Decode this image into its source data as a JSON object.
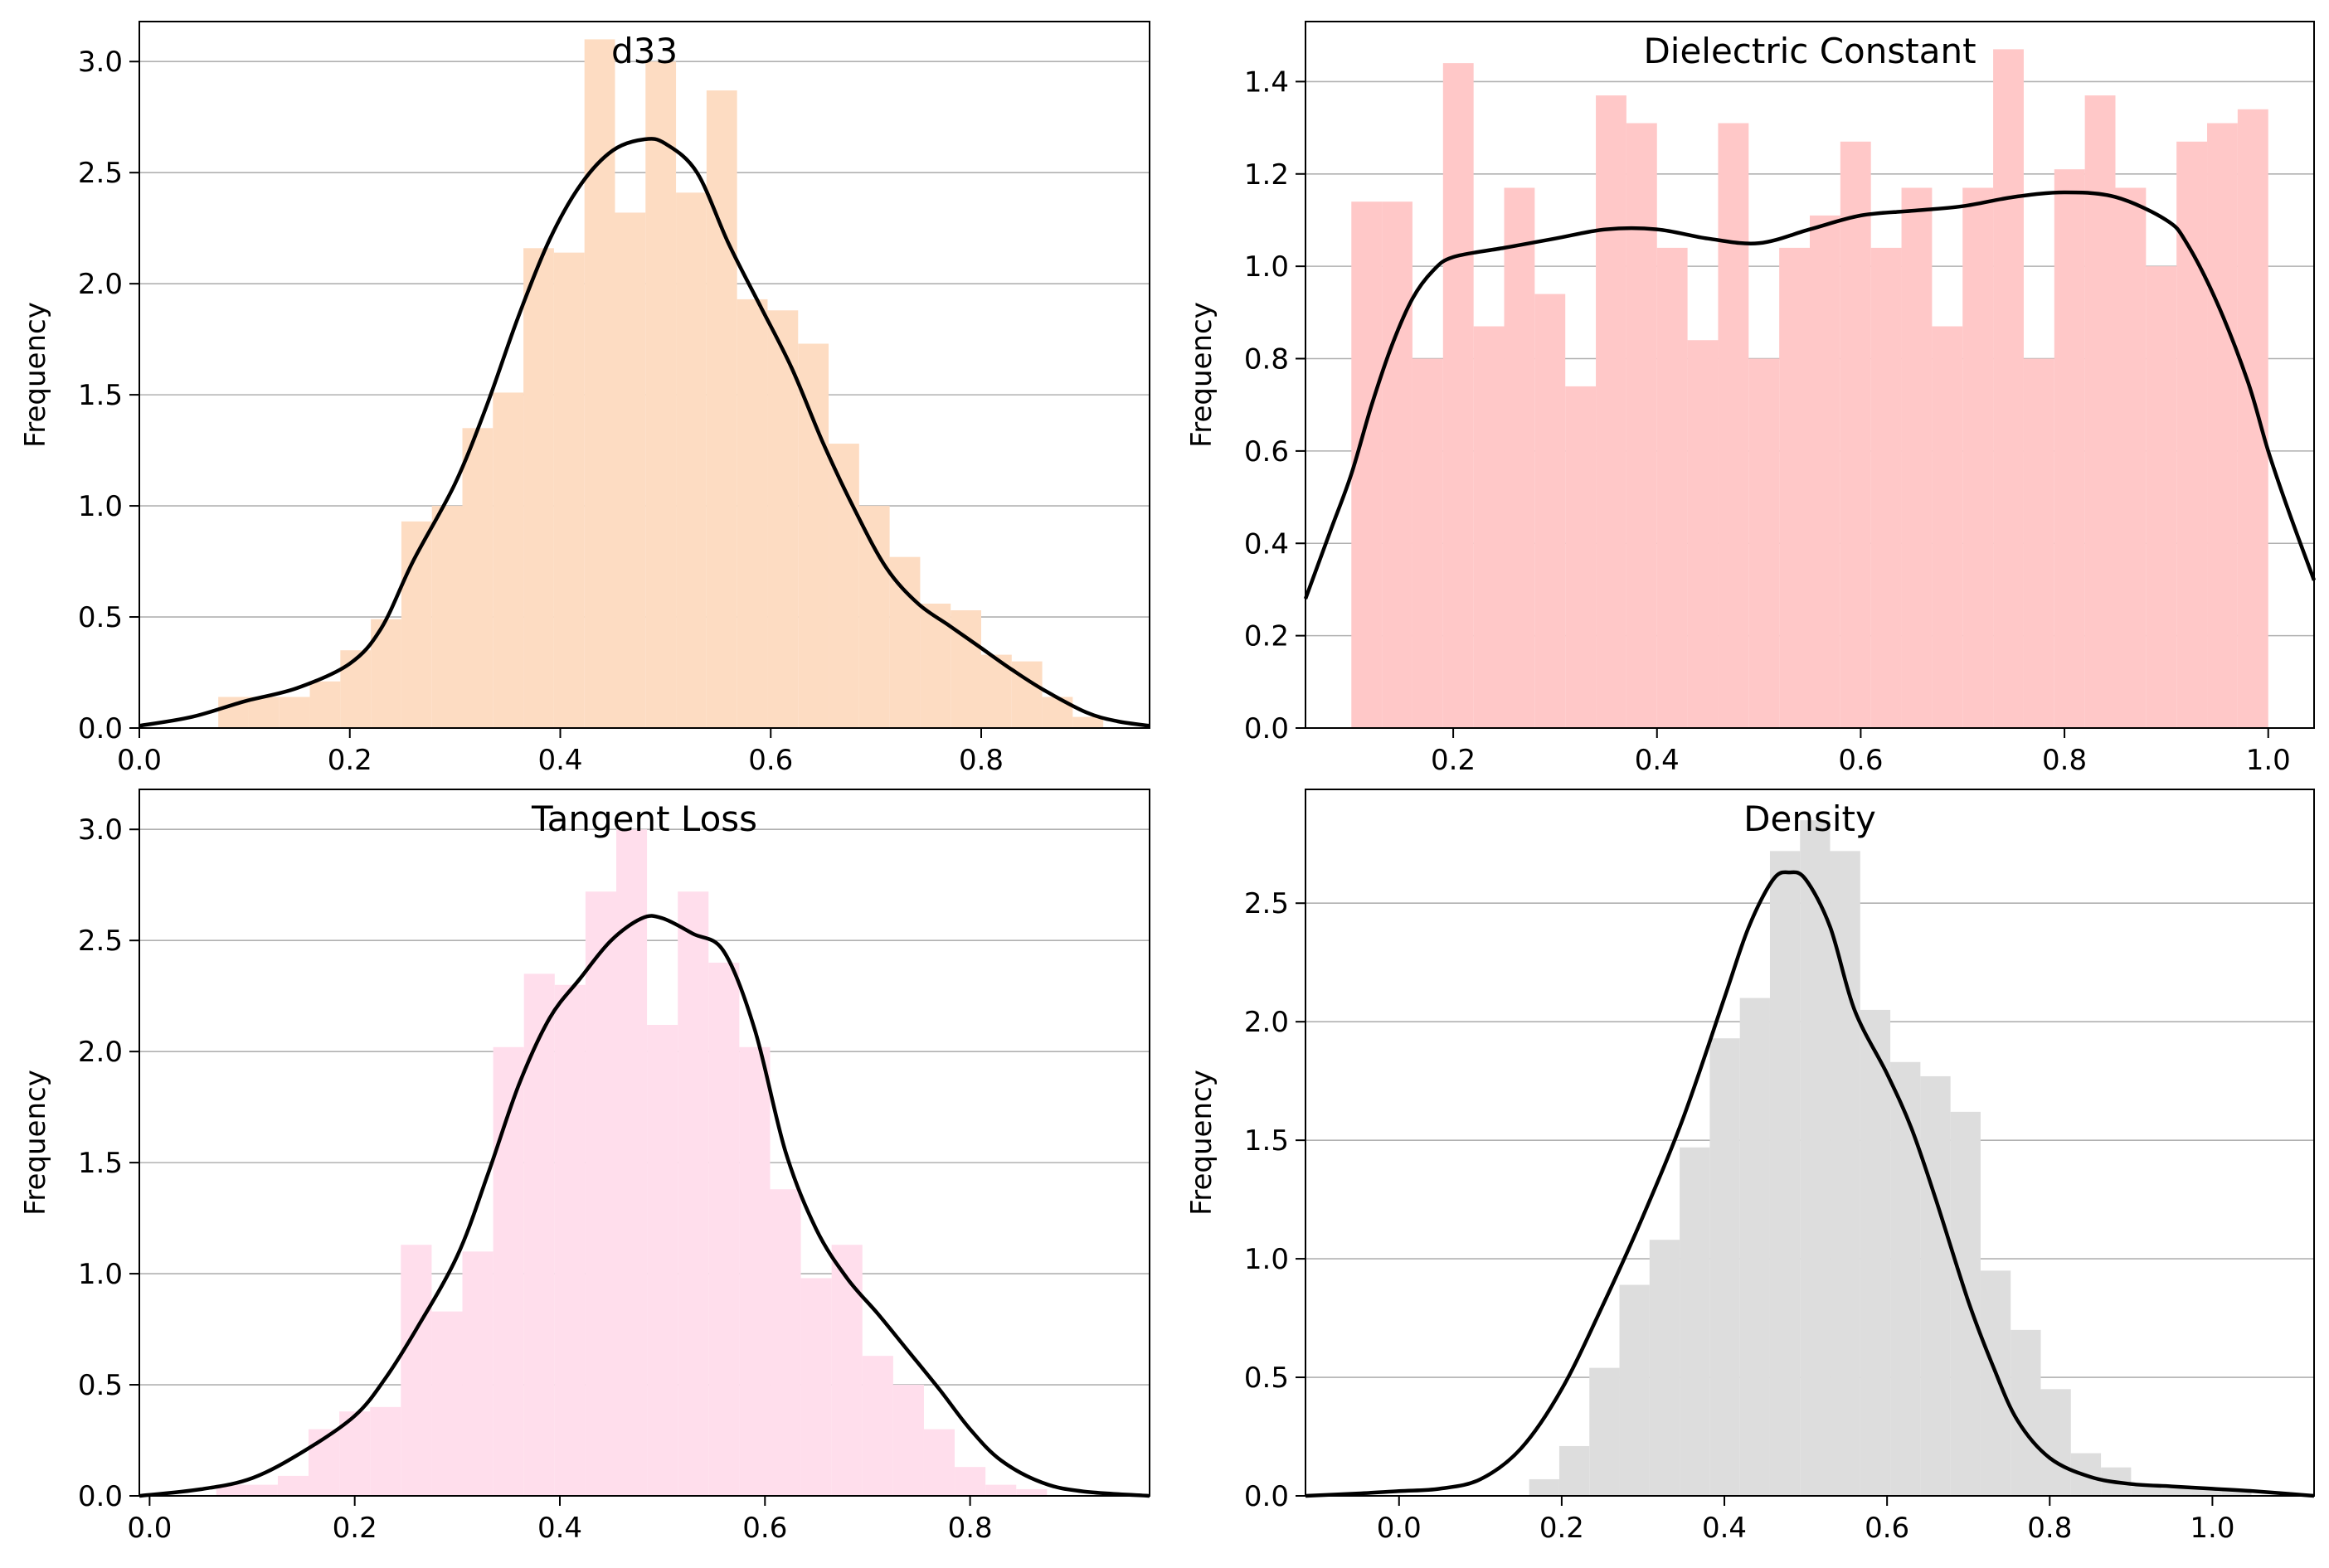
{
  "chart_data": [
    {
      "type": "histogram",
      "title": "d33",
      "xlabel": "",
      "ylabel": "Frequency",
      "xlim": [
        0.0,
        0.96
      ],
      "ylim": [
        0,
        3.18
      ],
      "xticks": [
        0.0,
        0.2,
        0.4,
        0.6,
        0.8
      ],
      "xtick_labels": [
        "0.0",
        "0.2",
        "0.4",
        "0.6",
        "0.8"
      ],
      "yticks": [
        0.0,
        0.5,
        1.0,
        1.5,
        2.0,
        2.5,
        3.0
      ],
      "ytick_labels": [
        "0.0",
        "0.5",
        "1.0",
        "1.5",
        "2.0",
        "2.5",
        "3.0"
      ],
      "grid": "y",
      "bar_color": "#fddcc2",
      "kde_color": "#000000",
      "bins": [
        0.075,
        0.104,
        0.133,
        0.162,
        0.191,
        0.22,
        0.249,
        0.278,
        0.307,
        0.336,
        0.365,
        0.394,
        0.423,
        0.452,
        0.481,
        0.51,
        0.539,
        0.568,
        0.597,
        0.626,
        0.655,
        0.684,
        0.713,
        0.742,
        0.771,
        0.8,
        0.829,
        0.858,
        0.887,
        0.916
      ],
      "values": [
        0.14,
        0.14,
        0.14,
        0.21,
        0.35,
        0.49,
        0.93,
        1.0,
        1.35,
        1.51,
        2.16,
        2.14,
        3.1,
        2.32,
        3.0,
        2.41,
        2.87,
        1.93,
        1.88,
        1.73,
        1.28,
        1.0,
        0.77,
        0.56,
        0.53,
        0.33,
        0.3,
        0.14,
        0.05
      ],
      "kde": {
        "x": [
          0.0,
          0.05,
          0.1,
          0.15,
          0.2,
          0.23,
          0.26,
          0.3,
          0.33,
          0.36,
          0.39,
          0.42,
          0.45,
          0.48,
          0.5,
          0.53,
          0.56,
          0.59,
          0.62,
          0.65,
          0.68,
          0.71,
          0.74,
          0.77,
          0.8,
          0.83,
          0.86,
          0.9,
          0.93,
          0.96
        ],
        "y": [
          0.01,
          0.05,
          0.12,
          0.18,
          0.29,
          0.45,
          0.75,
          1.1,
          1.45,
          1.85,
          2.2,
          2.45,
          2.6,
          2.65,
          2.63,
          2.5,
          2.18,
          1.9,
          1.62,
          1.28,
          0.98,
          0.72,
          0.56,
          0.46,
          0.36,
          0.26,
          0.17,
          0.07,
          0.03,
          0.01
        ]
      }
    },
    {
      "type": "histogram",
      "title": "Dielectric Constant",
      "xlabel": "",
      "ylabel": "Frequency",
      "xlim": [
        0.055,
        1.045
      ],
      "ylim": [
        0,
        1.53
      ],
      "xticks": [
        0.2,
        0.4,
        0.6,
        0.8,
        1.0
      ],
      "xtick_labels": [
        "0.2",
        "0.4",
        "0.6",
        "0.8",
        "1.0"
      ],
      "yticks": [
        0.0,
        0.2,
        0.4,
        0.6,
        0.8,
        1.0,
        1.2,
        1.4
      ],
      "ytick_labels": [
        "0.0",
        "0.2",
        "0.4",
        "0.6",
        "0.8",
        "1.0",
        "1.2",
        "1.4"
      ],
      "grid": "y",
      "bar_color": "#ffc8c8",
      "kde_color": "#000000",
      "bins": [
        0.1,
        0.13,
        0.16,
        0.19,
        0.22,
        0.25,
        0.28,
        0.31,
        0.34,
        0.37,
        0.4,
        0.43,
        0.46,
        0.49,
        0.52,
        0.55,
        0.58,
        0.61,
        0.64,
        0.67,
        0.7,
        0.73,
        0.76,
        0.79,
        0.82,
        0.85,
        0.88,
        0.91,
        0.94,
        0.97,
        1.0
      ],
      "values": [
        1.14,
        1.14,
        0.8,
        1.44,
        0.87,
        1.17,
        0.94,
        0.74,
        1.37,
        1.31,
        1.04,
        0.84,
        1.31,
        0.8,
        1.04,
        1.11,
        1.27,
        1.04,
        1.17,
        0.87,
        1.17,
        1.47,
        0.8,
        1.21,
        1.37,
        1.17,
        1.0,
        1.27,
        1.31,
        1.34
      ],
      "kde": {
        "x": [
          0.055,
          0.08,
          0.1,
          0.12,
          0.14,
          0.16,
          0.18,
          0.2,
          0.25,
          0.3,
          0.35,
          0.4,
          0.45,
          0.5,
          0.55,
          0.6,
          0.65,
          0.7,
          0.75,
          0.8,
          0.85,
          0.9,
          0.92,
          0.95,
          0.98,
          1.0,
          1.02,
          1.045
        ],
        "y": [
          0.28,
          0.43,
          0.55,
          0.7,
          0.83,
          0.93,
          0.99,
          1.02,
          1.04,
          1.06,
          1.08,
          1.08,
          1.06,
          1.05,
          1.08,
          1.11,
          1.12,
          1.13,
          1.15,
          1.16,
          1.15,
          1.1,
          1.05,
          0.92,
          0.75,
          0.6,
          0.47,
          0.32
        ]
      }
    },
    {
      "type": "histogram",
      "title": "Tangent Loss",
      "xlabel": "",
      "ylabel": "Frequency",
      "xlim": [
        -0.01,
        0.975
      ],
      "ylim": [
        0,
        3.18
      ],
      "xticks": [
        0.0,
        0.2,
        0.4,
        0.6,
        0.8
      ],
      "xtick_labels": [
        "0.0",
        "0.2",
        "0.4",
        "0.6",
        "0.8"
      ],
      "yticks": [
        0.0,
        0.5,
        1.0,
        1.5,
        2.0,
        2.5,
        3.0
      ],
      "ytick_labels": [
        "0.0",
        "0.5",
        "1.0",
        "1.5",
        "2.0",
        "2.5",
        "3.0"
      ],
      "grid": "y",
      "bar_color": "#ffdeec",
      "kde_color": "#000000",
      "bins": [
        0.065,
        0.095,
        0.125,
        0.155,
        0.185,
        0.215,
        0.245,
        0.275,
        0.305,
        0.335,
        0.365,
        0.395,
        0.425,
        0.455,
        0.485,
        0.515,
        0.545,
        0.575,
        0.605,
        0.635,
        0.665,
        0.695,
        0.725,
        0.755,
        0.785,
        0.815,
        0.845,
        0.875
      ],
      "values": [
        0.05,
        0.05,
        0.09,
        0.3,
        0.38,
        0.4,
        1.13,
        0.83,
        1.1,
        2.02,
        2.35,
        2.3,
        2.72,
        3.0,
        2.12,
        2.72,
        2.4,
        2.02,
        1.38,
        0.98,
        1.13,
        0.63,
        0.5,
        0.3,
        0.13,
        0.05,
        0.03
      ],
      "kde": {
        "x": [
          -0.01,
          0.05,
          0.1,
          0.15,
          0.2,
          0.23,
          0.26,
          0.3,
          0.33,
          0.36,
          0.39,
          0.42,
          0.45,
          0.48,
          0.5,
          0.53,
          0.56,
          0.59,
          0.62,
          0.65,
          0.68,
          0.71,
          0.74,
          0.77,
          0.8,
          0.83,
          0.87,
          0.91,
          0.975
        ],
        "y": [
          0.0,
          0.03,
          0.08,
          0.2,
          0.36,
          0.53,
          0.75,
          1.08,
          1.45,
          1.85,
          2.15,
          2.33,
          2.5,
          2.6,
          2.6,
          2.53,
          2.45,
          2.1,
          1.55,
          1.2,
          0.98,
          0.82,
          0.65,
          0.48,
          0.3,
          0.16,
          0.06,
          0.02,
          0.0
        ]
      }
    },
    {
      "type": "histogram",
      "title": "Density",
      "xlabel": "",
      "ylabel": "Frequency",
      "xlim": [
        -0.115,
        1.125
      ],
      "ylim": [
        0,
        2.98
      ],
      "xticks": [
        0.0,
        0.2,
        0.4,
        0.6,
        0.8,
        1.0
      ],
      "xtick_labels": [
        "0.0",
        "0.2",
        "0.4",
        "0.6",
        "0.8",
        "1.0"
      ],
      "yticks": [
        0.0,
        0.5,
        1.0,
        1.5,
        2.0,
        2.5
      ],
      "ytick_labels": [
        "0.0",
        "0.5",
        "1.0",
        "1.5",
        "2.0",
        "2.5"
      ],
      "grid": "y",
      "bar_color": "#dddddd",
      "kde_color": "#000000",
      "bins": [
        0.16,
        0.197,
        0.234,
        0.271,
        0.308,
        0.345,
        0.382,
        0.419,
        0.456,
        0.493,
        0.53,
        0.567,
        0.604,
        0.641,
        0.678,
        0.715,
        0.752,
        0.789,
        0.826,
        0.863,
        0.9,
        0.937,
        0.974,
        1.011,
        1.048
      ],
      "values": [
        0.07,
        0.21,
        0.54,
        0.89,
        1.08,
        1.47,
        1.93,
        2.1,
        2.72,
        2.85,
        2.72,
        2.05,
        1.83,
        1.77,
        1.62,
        0.95,
        0.7,
        0.45,
        0.18,
        0.12,
        0.04,
        0.03,
        0.03,
        0.03
      ],
      "kde": {
        "x": [
          -0.115,
          -0.05,
          0.0,
          0.05,
          0.1,
          0.15,
          0.2,
          0.25,
          0.3,
          0.35,
          0.4,
          0.43,
          0.46,
          0.48,
          0.5,
          0.53,
          0.56,
          0.6,
          0.63,
          0.66,
          0.7,
          0.73,
          0.76,
          0.8,
          0.85,
          0.9,
          0.95,
          1.0,
          1.05,
          1.125
        ],
        "y": [
          0.0,
          0.01,
          0.02,
          0.03,
          0.07,
          0.2,
          0.45,
          0.8,
          1.18,
          1.6,
          2.1,
          2.4,
          2.6,
          2.63,
          2.6,
          2.4,
          2.05,
          1.78,
          1.55,
          1.25,
          0.82,
          0.55,
          0.32,
          0.16,
          0.08,
          0.05,
          0.04,
          0.03,
          0.02,
          0.0
        ]
      }
    }
  ]
}
